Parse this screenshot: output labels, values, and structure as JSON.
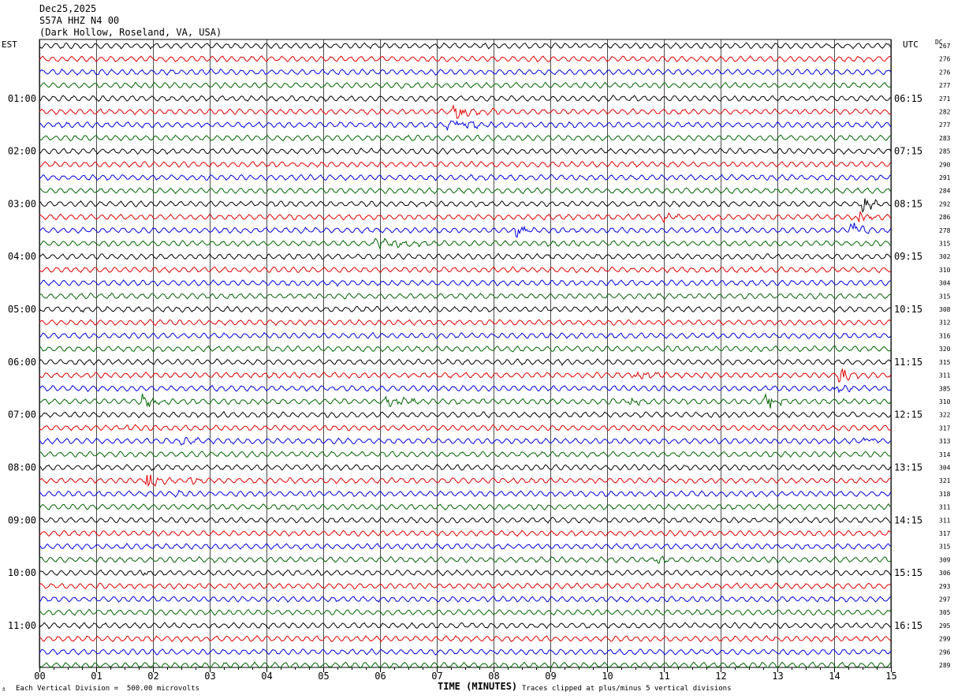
{
  "header": {
    "date": "Dec25,2025",
    "station": "S57A HHZ N4 00",
    "location": "(Dark Hollow, Roseland, VA, USA)"
  },
  "corner": {
    "left": "EST",
    "right": "UTC",
    "dc": "DC"
  },
  "footer": {
    "scale_note": "Each Vertical Division =  500.00 microvolts",
    "axis_title": "TIME (MINUTES)",
    "clip_note": "Traces clipped at plus/minus 5 vertical divisions",
    "mark": "♗"
  },
  "chart_data": {
    "type": "helicorder",
    "x_unit": "minutes",
    "xlim": [
      0,
      15
    ],
    "x_ticks": [
      "00",
      "01",
      "02",
      "03",
      "04",
      "05",
      "06",
      "07",
      "08",
      "09",
      "10",
      "11",
      "12",
      "13",
      "14",
      "15"
    ],
    "grid": "vertical lines every minute",
    "trace_colors": [
      "#000000",
      "#e00000",
      "#0000e0",
      "#006400"
    ],
    "est_labels": [
      "01:00",
      "02:00",
      "03:00",
      "04:00",
      "05:00",
      "06:00",
      "07:00",
      "08:00",
      "09:00",
      "10:00",
      "11:00"
    ],
    "utc_labels": [
      "06:15",
      "07:15",
      "08:15",
      "09:15",
      "10:15",
      "11:15",
      "12:15",
      "13:15",
      "14:15",
      "15:15",
      "16:15"
    ],
    "label_every_n_rows": 4,
    "first_label_row": 4,
    "dc_offsets": [
      267,
      276,
      276,
      277,
      271,
      282,
      277,
      283,
      285,
      290,
      291,
      284,
      292,
      286,
      278,
      315,
      302,
      310,
      304,
      315,
      308,
      312,
      316,
      320,
      315,
      311,
      385,
      310,
      322,
      317,
      313,
      314,
      304,
      321,
      318,
      311,
      311,
      317,
      315,
      309,
      306,
      293,
      297,
      305,
      295,
      299,
      296,
      289
    ],
    "events": [
      {
        "row": 5,
        "minute": 7.3,
        "amp": 7,
        "dur": 0.8
      },
      {
        "row": 6,
        "minute": 7.2,
        "amp": 8,
        "dur": 1.0
      },
      {
        "row": 12,
        "minute": 14.5,
        "amp": 12,
        "dur": 0.3
      },
      {
        "row": 13,
        "minute": 11.0,
        "amp": 5,
        "dur": 0.5
      },
      {
        "row": 13,
        "minute": 14.4,
        "amp": 10,
        "dur": 0.4
      },
      {
        "row": 14,
        "minute": 8.4,
        "amp": 9,
        "dur": 0.4
      },
      {
        "row": 14,
        "minute": 14.3,
        "amp": 10,
        "dur": 0.4
      },
      {
        "row": 15,
        "minute": 5.9,
        "amp": 6,
        "dur": 1.3
      },
      {
        "row": 25,
        "minute": 14.1,
        "amp": 8,
        "dur": 0.4
      },
      {
        "row": 25,
        "minute": 10.5,
        "amp": 4,
        "dur": 0.8
      },
      {
        "row": 26,
        "minute": 14.0,
        "amp": 6,
        "dur": 0.4
      },
      {
        "row": 27,
        "minute": 1.8,
        "amp": 8,
        "dur": 0.6
      },
      {
        "row": 27,
        "minute": 6.1,
        "amp": 10,
        "dur": 0.6
      },
      {
        "row": 27,
        "minute": 12.8,
        "amp": 9,
        "dur": 0.6
      },
      {
        "row": 27,
        "minute": 10.4,
        "amp": 5,
        "dur": 0.4
      },
      {
        "row": 29,
        "minute": 1.4,
        "amp": 4,
        "dur": 0.6
      },
      {
        "row": 30,
        "minute": 2.5,
        "amp": 4,
        "dur": 0.8
      },
      {
        "row": 30,
        "minute": 14.5,
        "amp": 7,
        "dur": 0.4
      },
      {
        "row": 33,
        "minute": 1.9,
        "amp": 9,
        "dur": 0.5
      },
      {
        "row": 33,
        "minute": 2.7,
        "amp": 5,
        "dur": 0.3
      },
      {
        "row": 34,
        "minute": 2.4,
        "amp": 4,
        "dur": 0.4
      },
      {
        "row": 39,
        "minute": 10.9,
        "amp": 6,
        "dur": 0.3
      },
      {
        "row": 40,
        "minute": 1.8,
        "amp": 3,
        "dur": 0.4
      }
    ]
  }
}
